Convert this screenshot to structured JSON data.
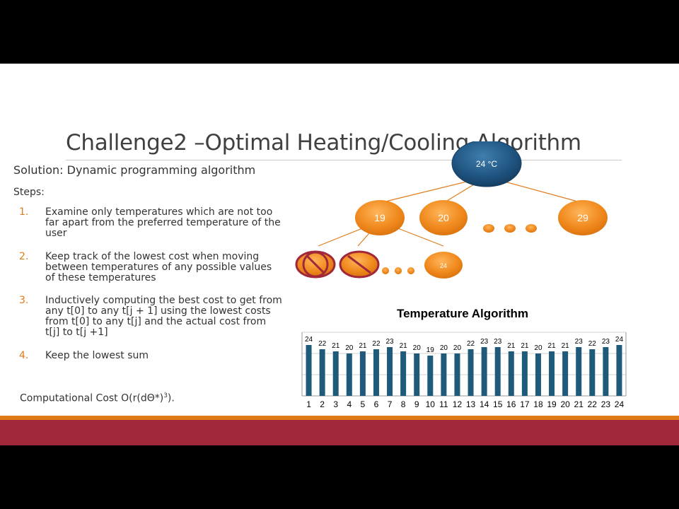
{
  "slide": {
    "title": "Challenge2 –Optimal Heating/Cooling Algorithm",
    "solution": "Solution: Dynamic programming algorithm",
    "steps_label": "Steps:",
    "steps": [
      {
        "num": "1.",
        "text": "Examine only temperatures which are not too far apart from the preferred temperature of the user"
      },
      {
        "num": "2.",
        "text": "Keep track of the lowest cost when moving between temperatures of any possible values of these temperatures"
      },
      {
        "num": "3.",
        "text": "Inductively computing the best cost to get from any t[0] to any t[j + 1] using the lowest costs from t[0] to any t[j] and the actual cost from  t[j] to t[j +1]"
      },
      {
        "num": "4.",
        "text": "Keep the lowest sum"
      }
    ],
    "cost_prefix": "Computational Cost  O(r(dΘ*)",
    "cost_exp": "3",
    "cost_suffix": ")."
  },
  "tree": {
    "root_label": "24 °C",
    "level1": [
      "19",
      "20",
      "29"
    ],
    "level2_last": "24",
    "colors": {
      "root": "#1c4f7a",
      "node": "#f08a1e",
      "edge": "#e07b1a",
      "cross": "#a0283a"
    }
  },
  "chart_data": {
    "type": "bar",
    "title": "Temperature Algorithm",
    "categories": [
      "1",
      "2",
      "3",
      "4",
      "5",
      "6",
      "7",
      "8",
      "9",
      "10",
      "11",
      "12",
      "13",
      "14",
      "15",
      "16",
      "17",
      "18",
      "19",
      "20",
      "21",
      "22",
      "23",
      "24"
    ],
    "values": [
      24,
      22,
      21,
      20,
      21,
      22,
      23,
      21,
      20,
      19,
      20,
      20,
      22,
      23,
      23,
      21,
      21,
      20,
      21,
      21,
      23,
      22,
      23,
      24
    ],
    "ylim": [
      0,
      30
    ],
    "grid": true,
    "color": "#1f5a7a"
  },
  "colors": {
    "accent_orange": "#e07b1a",
    "accent_red": "#a0283a"
  }
}
